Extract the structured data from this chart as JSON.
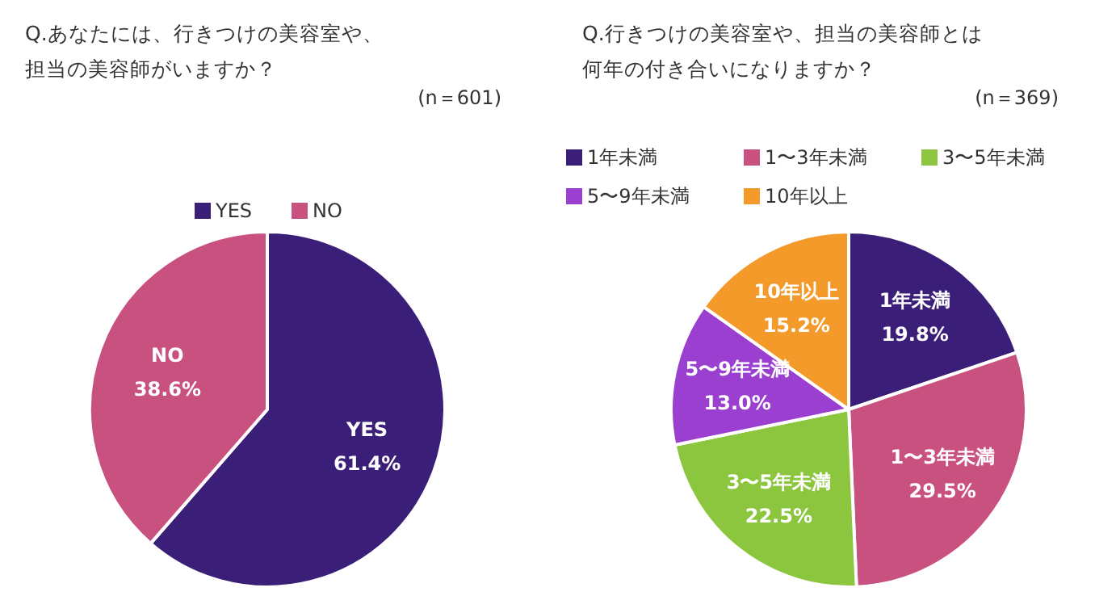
{
  "chart_data": [
    {
      "type": "pie",
      "title": "Q.あなたには、行きつけの美容室や、",
      "subtitle": "担当の美容師がいますか？",
      "annotations": [
        "(n＝601)"
      ],
      "categories": [
        "YES",
        "NO"
      ],
      "values": [
        61.4,
        38.6
      ],
      "value_labels": [
        "61.4%",
        "38.6%"
      ],
      "colors": [
        "#3b1e78",
        "#c9517f"
      ],
      "legend": "top"
    },
    {
      "type": "pie",
      "title": "Q.行きつけの美容室や、担当の美容師とは",
      "subtitle": "何年の付き合いになりますか？",
      "annotations": [
        "(n＝369)"
      ],
      "categories": [
        "1年未満",
        "1〜3年未満",
        "3〜5年未満",
        "5〜9年未満",
        "10年以上"
      ],
      "values": [
        19.8,
        29.5,
        22.5,
        13.0,
        15.2
      ],
      "value_labels": [
        "19.8%",
        "29.5%",
        "22.5%",
        "13.0%",
        "15.2%"
      ],
      "colors": [
        "#3b1e78",
        "#c9517f",
        "#8cc63f",
        "#9b3fd1",
        "#f39a2b"
      ],
      "legend": "top"
    }
  ]
}
